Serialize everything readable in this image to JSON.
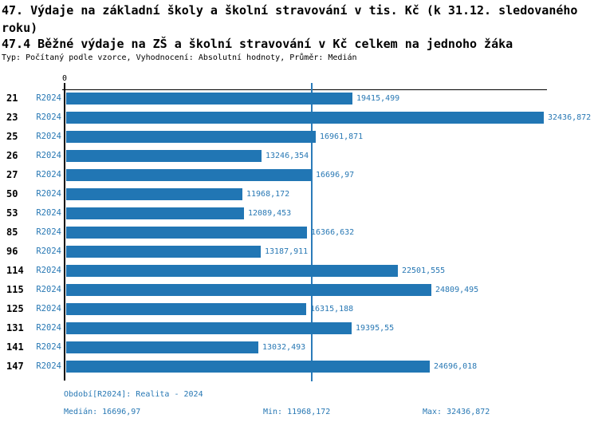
{
  "header": {
    "title": "47. Výdaje na základní školy a školní stravování v tis. Kč (k 31.12. sledovaného roku)",
    "subtitle": "47.4 Běžné výdaje na ZŠ a školní stravování v Kč celkem na jednoho žáka",
    "meta": "Typ: Počítaný podle vzorce, Vyhodnocení: Absolutní hodnoty, Průměr: Medián"
  },
  "chart_data": {
    "type": "bar",
    "orientation": "horizontal",
    "series_label": "R2024",
    "categories": [
      "21",
      "23",
      "25",
      "26",
      "27",
      "50",
      "53",
      "85",
      "96",
      "114",
      "115",
      "125",
      "131",
      "141",
      "147"
    ],
    "values": [
      19415.499,
      32436.872,
      16961.871,
      13246.354,
      16696.97,
      11968.172,
      12089.453,
      16366.632,
      13187.911,
      22501.555,
      24809.495,
      16315.188,
      19395.55,
      13032.493,
      24696.018
    ],
    "value_labels": [
      "19415,499",
      "32436,872",
      "16961,871",
      "13246,354",
      "16696,97",
      "11968,172",
      "12089,453",
      "16366,632",
      "13187,911",
      "22501,555",
      "24809,495",
      "16315,188",
      "19395,55",
      "13032,493",
      "24696,018"
    ],
    "axis_zero_label": "0",
    "xlim": [
      0,
      32436.872
    ],
    "median_line_value": 16696.97,
    "grid": false,
    "legend_position": "none",
    "bar_color": "#2176b4",
    "text_color": "#2878b4"
  },
  "footer": {
    "period": "Období[R2024]: Realita - 2024",
    "median": "Medián: 16696,97",
    "min": "Min: 11968,172",
    "max": "Max: 32436,872"
  }
}
